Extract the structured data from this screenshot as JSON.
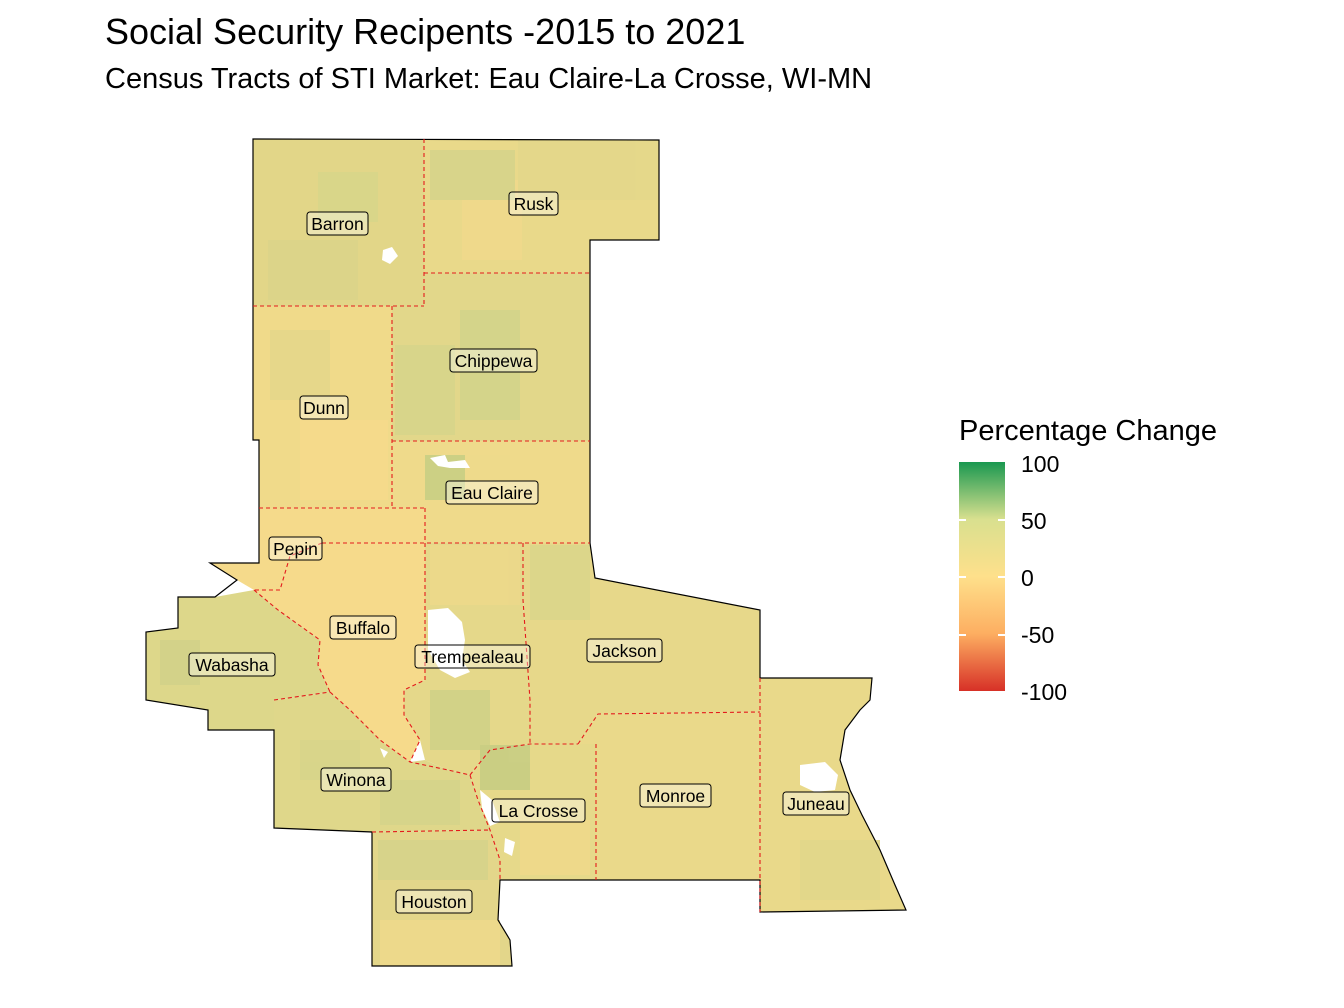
{
  "title": "Social Security Recipents -2015 to 2021",
  "subtitle": "Census Tracts of STI Market: Eau Claire-La Crosse, WI-MN",
  "legend": {
    "title": "Percentage Change",
    "ticks": [
      "100",
      "50",
      "0",
      "-50",
      "-100"
    ],
    "colors": [
      "#1a9850",
      "#d9e08f",
      "#fee08b",
      "#fdae61",
      "#d73027"
    ]
  },
  "counties": [
    {
      "name": "Barron"
    },
    {
      "name": "Rusk"
    },
    {
      "name": "Chippewa"
    },
    {
      "name": "Dunn"
    },
    {
      "name": "Eau Claire"
    },
    {
      "name": "Pepin"
    },
    {
      "name": "Buffalo"
    },
    {
      "name": "Trempealeau"
    },
    {
      "name": "Jackson"
    },
    {
      "name": "Wabasha"
    },
    {
      "name": "Winona"
    },
    {
      "name": "La Crosse"
    },
    {
      "name": "Monroe"
    },
    {
      "name": "Juneau"
    },
    {
      "name": "Houston"
    }
  ]
}
